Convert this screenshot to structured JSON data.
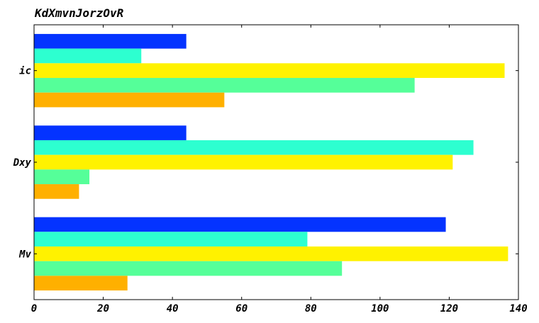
{
  "chart_data": {
    "type": "bar",
    "orientation": "horizontal",
    "title": "KdXmvnJorzOvR",
    "categories": [
      "ic",
      "Dxy",
      "Mv"
    ],
    "xlim": [
      0,
      140
    ],
    "xticks": [
      0,
      20,
      40,
      60,
      80,
      100,
      120,
      140
    ],
    "grid": false,
    "legend": "none",
    "series": [
      {
        "color": "#0433ff",
        "values": [
          44,
          44,
          119
        ]
      },
      {
        "color": "#2dffd0",
        "values": [
          31,
          127,
          79
        ]
      },
      {
        "color": "#fff200",
        "values": [
          136,
          121,
          137
        ]
      },
      {
        "color": "#55ff99",
        "values": [
          110,
          16,
          89
        ]
      },
      {
        "color": "#ffb000",
        "values": [
          55,
          13,
          27
        ]
      }
    ]
  }
}
